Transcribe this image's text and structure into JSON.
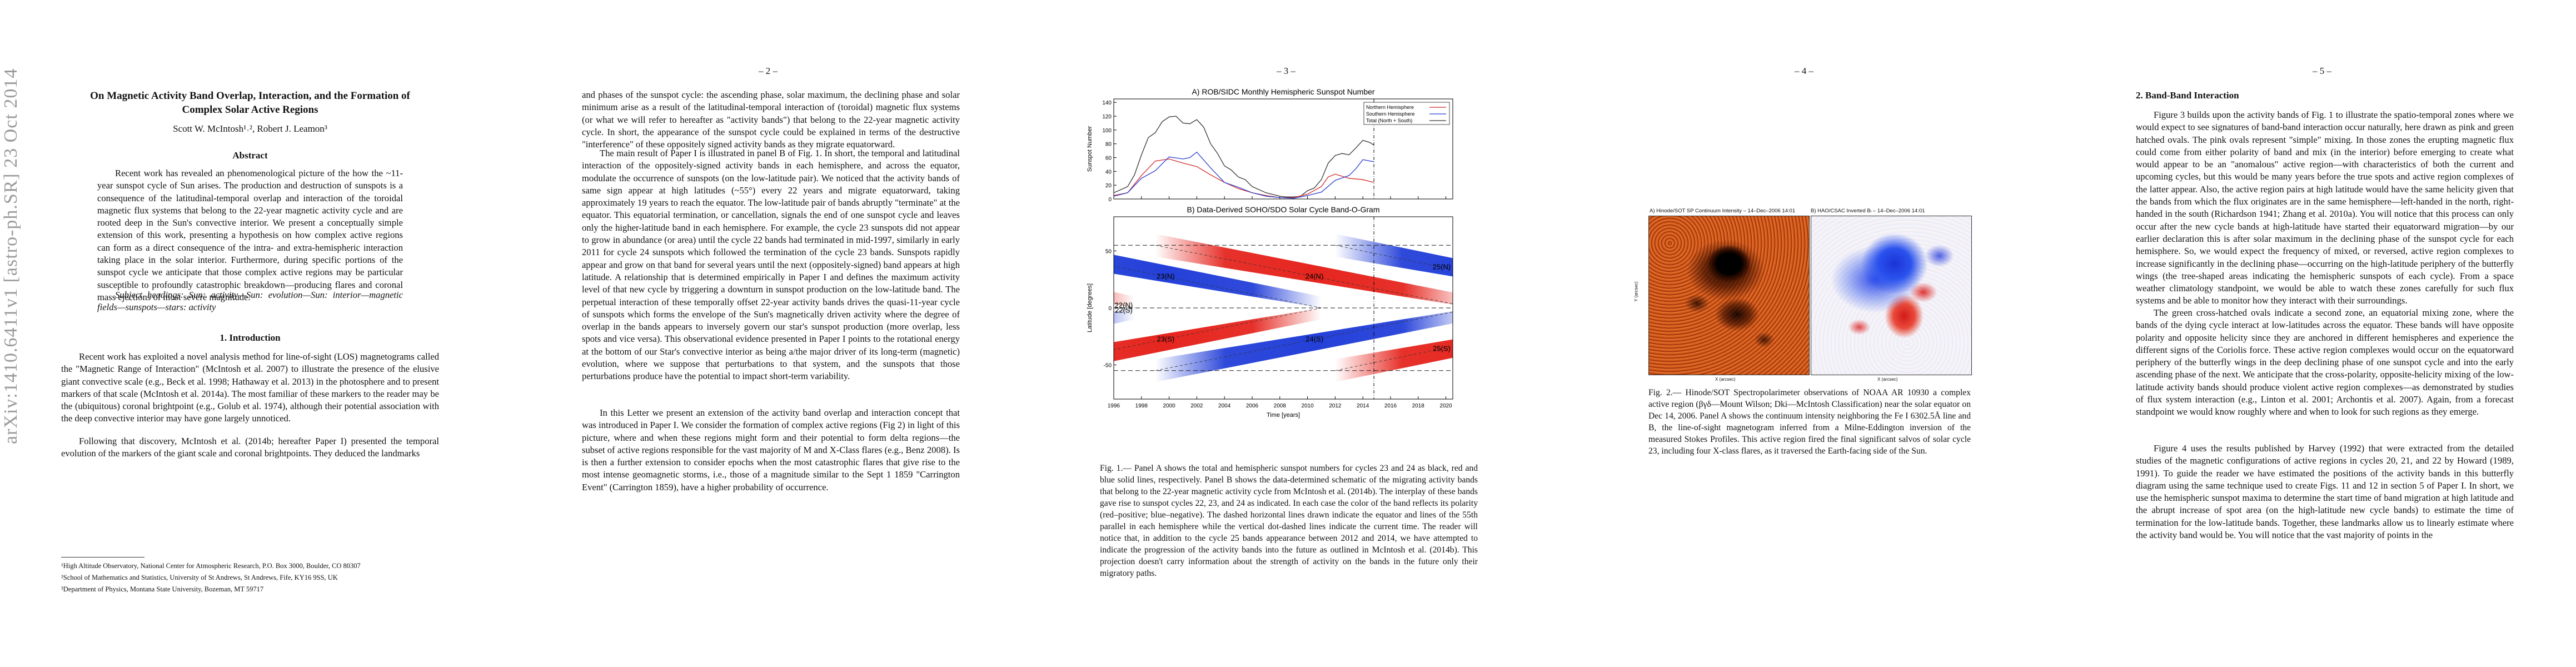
{
  "arxiv_id": "arXiv:1410.6411v1  [astro-ph.SR]  23 Oct 2014",
  "page1": {
    "title": "On Magnetic Activity Band Overlap, Interaction, and the Formation of Complex Solar Active Regions",
    "authors": "Scott W. McIntosh¹˒², Robert J. Leamon³",
    "abstract_heading": "Abstract",
    "abstract": "Recent work has revealed an phenomenological picture of the how the ~11-year sunspot cycle of Sun arises. The production and destruction of sunspots is a consequence of the latitudinal-temporal overlap and interaction of the toroidal magnetic flux systems that belong to the 22-year magnetic activity cycle and are rooted deep in the Sun's convective interior. We present a conceptually simple extension of this work, presenting a hypothesis on how complex active regions can form as a direct consequence of the intra- and extra-hemispheric interaction taking place in the solar interior. Furthermore, during specific portions of the sunspot cycle we anticipate that those complex active regions may be particular susceptible to profoundly catastrophic breakdown—producing flares and coronal mass ejections of most severe magnitude.",
    "subject_headings": "Subject headings: Sun: activity—Sun: evolution—Sun: interior—magnetic fields—sunspots—stars: activity",
    "intro_heading": "1.   Introduction",
    "intro_p1": "Recent work has exploited a novel analysis method for line-of-sight (LOS) magnetograms called the \"Magnetic Range of Interaction\" (McIntosh et al. 2007) to illustrate the presence of the elusive giant convective scale (e.g., Beck et al. 1998; Hathaway et al. 2013) in the photosphere and to present markers of that scale (McIntosh et al. 2014a). The most familiar of these markers to the reader may be the (ubiquitous) coronal brightpoint (e.g., Golub et al. 1974), although their potential association with the deep convective interior may have gone largely unnoticed.",
    "intro_p2": "Following that discovery, McIntosh et al. (2014b; hereafter Paper I) presented the temporal evolution of the markers of the giant scale and coronal brightpoints. They deduced the landmarks",
    "footnotes": [
      "¹High Altitude Observatory, National Center for Atmospheric Research, P.O. Box 3000, Boulder, CO 80307",
      "²School of Mathematics and Statistics, University of St Andrews, St Andrews, Fife, KY16 9SS, UK",
      "³Department of Physics, Montana State University, Bozeman, MT 59717"
    ]
  },
  "page2": {
    "number": "– 2 –",
    "p1": "and phases of the sunspot cycle: the ascending phase, solar maximum, the declining phase and solar minimum arise as a result of the latitudinal-temporal interaction of (toroidal) magnetic flux systems (or what we will refer to hereafter as \"activity bands\") that belong to the 22-year magnetic activity cycle. In short, the appearance of the sunspot cycle could be explained in terms of the destructive \"interference\" of these oppositely signed activity bands as they migrate equatorward.",
    "p2": "The main result of Paper I is illustrated in panel B of Fig. 1. In short, the temporal and latitudinal interaction of the oppositely-signed activity bands in each hemisphere, and across the equator, modulate the occurrence of sunspots (on the low-latitude pair). We noticed that the activity bands of same sign appear at high latitudes (~55°) every 22 years and migrate equatorward, taking approximately 19 years to reach the equator. The low-latitude pair of bands abruptly \"terminate\" at the equator. This equatorial termination, or cancellation, signals the end of one sunspot cycle and leaves only the higher-latitude band in each hemisphere. For example, the cycle 23 sunspots did not appear to grow in abundance (or area) until the cycle 22 bands had terminated in mid-1997, similarly in early 2011 for cycle 24 sunspots which followed the termination of the cycle 23 bands. Sunspots rapidly appear and grow on that band for several years until the next (oppositely-signed) band appears at high latitude. A relationship that is determined empirically in Paper I and defines the maximum activity level of that new cycle by triggering a downturn in sunspot production on the low-latitude band. The perpetual interaction of these temporally offset 22-year activity bands drives the quasi-11-year cycle of sunspots which forms the envelope of the Sun's magnetically driven activity where the degree of overlap in the bands appears to inversely govern our star's sunspot production (more overlap, less spots and vice versa). This observational evidence presented in Paper I points to the rotational energy at the bottom of our Star's convective interior as being a/the major driver of its long-term (magnetic) evolution, where we suppose that perturbations to that system, and the sunspots that those perturbations produce have the potential to impact short-term variability.",
    "p3": "In this Letter we present an extension of the activity band overlap and interaction concept that was introduced in Paper I. We consider the formation of complex active regions (Fig 2) in light of this picture, where and when these regions might form and their potential to form delta regions—the subset of active regions responsible for the vast majority of M and X-Class flares (e.g., Benz 2008). Is is then a further extension to consider epochs when the most catastrophic flares that give rise to the most intense geomagnetic storms, i.e., those of a magnitude similar to the Sept 1 1859 \"Carrington Event\" (Carrington 1859), have a higher probability of occurrence."
  },
  "page3": {
    "number": "– 3 –",
    "panel_a_title": "A) ROB/SIDC Monthly Hemispheric Sunspot Number",
    "panel_b_title": "B) Data-Derived SOHO/SDO Solar Cycle Band-O-Gram",
    "caption": "Fig. 1.— Panel A shows the total and hemispheric sunspot numbers for cycles 23 and 24 as black, red and blue solid lines, respectively. Panel B shows the data-determined schematic of the migrating activity bands that belong to the 22-year magnetic activity cycle from McIntosh et al. (2014b). The interplay of these bands gave rise to sunspot cycles 22, 23, and 24 as indicated. In each case the color of the band reflects its polarity (red–positive; blue–negative). The dashed horizontal lines drawn indicate the equator and lines of the 55th parallel in each hemisphere while the vertical dot-dashed lines indicate the current time. The reader will notice that, in addition to the cycle 25 bands appearance between 2012 and 2014, we have attempted to indicate the progression of the activity bands into the future as outlined in McIntosh et al. (2014b). This projection doesn't carry information about the strength of activity on the bands in the future only their migratory paths."
  },
  "page4": {
    "number": "– 4 –",
    "panel_a_title": "A) Hinode/SOT SP Continuum Intensity – 14–Dec–2006 14:01",
    "panel_b_title": "B) HAO/CSAC Inverted Bₗ – 14–Dec–2006 14:01",
    "panel_a_ylabel": "Y (arcsec)",
    "panel_a_xlabel": "X (arcsec)",
    "panel_b_xlabel": "X (arcsec)",
    "caption": "Fig. 2.— Hinode/SOT Spectropolarimeter observations of NOAA AR 10930 a complex active region (βγδ—Mount Wilson; Dki—McIntosh Classification) near the solar equator on Dec 14, 2006. Panel A shows the continuum intensity neighboring the Fe I 6302.5Å line and B, the line-of-sight magnetogram inferred from a Milne-Eddington inversion of the measured Stokes Profiles. This active region fired the final significant salvos of solar cycle 23, including four X-class flares, as it traversed the Earth-facing side of the Sun."
  },
  "page5": {
    "number": "– 5 –",
    "heading": "2.   Band-Band Interaction",
    "p1": "Figure 3 builds upon the activity bands of Fig. 1 to illustrate the spatio-temporal zones where we would expect to see signatures of band-band interaction occur naturally, here drawn as pink and green hatched ovals. The pink ovals represent \"simple\" mixing. In those zones the erupting magnetic flux could come from either polarity of band and mix (in the interior) before emerging to create what would appear to be an \"anomalous\" active region—with characteristics of both the current and upcoming cycles, but this would be many years before the true spots and active region complexes of the latter appear. Also, the active region pairs at high latitude would have the same helicity given that the bands from which the flux originates are in the same hemisphere—left-handed in the north, right-handed in the south (Richardson 1941; Zhang et al. 2010a). You will notice that this process can only occur after the new cycle bands at high-latitude have started their equatorward migration—by our earlier declaration this is after solar maximum in the declining phase of the sunspot cycle for each hemisphere. So, we would expect the frequency of mixed, or reversed, active region complexes to increase significantly in the declining phase—occurring on the high-latitude periphery of the butterfly wings (the tree-shaped areas indicating the hemispheric sunspots of each cycle). From a space weather climatology standpoint, we would be able to watch these zones carefully for such flux systems and be able to monitor how they interact with their surroundings.",
    "p2": "The green cross-hatched ovals indicate a second zone, an equatorial mixing zone, where the bands of the dying cycle interact at low-latitudes across the equator. These bands will have opposite polarity and opposite helicity since they are anchored in different hemispheres and experience the different signs of the Coriolis force. These active region complexes would occur on the equatorward periphery of the butterfly wings in the deep declining phase of one sunspot cycle and into the early ascending phase of the next. We anticipate that the cross-polarity, opposite-helicity mixing of the low-latitude activity bands should produce violent active region complexes—as demonstrated by studies of flux system interaction (e.g., Linton et al. 2001; Archontis et al. 2007). Again, from a forecast standpoint we would know roughly where and when to look for such regions as they emerge.",
    "p3": "Figure 4 uses the results published by Harvey (1992) that were extracted from the detailed studies of the magnetic configurations of active regions in cycles 20, 21, and 22 by Howard (1989, 1991). To guide the reader we have estimated the positions of the activity bands in this butterfly diagram using the same technique used to create Figs. 11 and 12 in section 5 of Paper I. In short, we use the hemispheric sunspot maxima to determine the start time of band migration at high latitude and the abrupt increase of spot area (on the high-latitude new cycle bands) to estimate the time of termination for the low-latitude bands. Together, these landmarks allow us to linearly estimate where the activity band would be. You will notice that the vast majority of points in the"
  },
  "chart_data": [
    {
      "type": "line",
      "title": "A) ROB/SIDC Monthly Hemispheric Sunspot Number",
      "xlabel": "",
      "ylabel": "Sunspot Number",
      "xlim": [
        1996,
        2020.5
      ],
      "ylim": [
        0,
        145
      ],
      "yticks": [
        0,
        20,
        40,
        60,
        80,
        100,
        120,
        140
      ],
      "current_time": 2014.8,
      "legend": [
        "Northern Hemisphere",
        "Southern Hemisphere",
        "Total (North + South)"
      ],
      "legend_position": "top-right",
      "series": [
        {
          "name": "Total (North + South)",
          "color": "#333333",
          "x": [
            1996.0,
            1997.0,
            1997.5,
            1998.0,
            1998.5,
            1999.0,
            1999.5,
            2000.0,
            2000.5,
            2001.0,
            2001.5,
            2002.0,
            2002.5,
            2003.0,
            2003.5,
            2004.0,
            2004.5,
            2005.0,
            2005.5,
            2006.0,
            2007.0,
            2008.0,
            2008.5,
            2009.0,
            2009.5,
            2010.0,
            2010.5,
            2011.0,
            2011.5,
            2012.0,
            2012.5,
            2013.0,
            2013.5,
            2014.0,
            2014.5,
            2014.8
          ],
          "values": [
            9,
            18,
            35,
            64,
            89,
            96,
            112,
            119,
            120,
            110,
            109,
            115,
            104,
            80,
            66,
            48,
            42,
            32,
            28,
            18,
            9,
            4,
            3,
            3,
            4,
            12,
            16,
            28,
            52,
            63,
            66,
            64,
            74,
            85,
            82,
            78
          ]
        },
        {
          "name": "Northern Hemisphere",
          "color": "#d12a2a",
          "x": [
            1996.0,
            1997.0,
            1998.0,
            1999.0,
            2000.0,
            2000.5,
            2001.0,
            2002.0,
            2003.0,
            2004.0,
            2005.0,
            2006.0,
            2007.0,
            2008.0,
            2009.0,
            2010.0,
            2011.0,
            2011.5,
            2012.0,
            2013.0,
            2014.0,
            2014.8
          ],
          "values": [
            5,
            9,
            34,
            55,
            58,
            55,
            52,
            47,
            35,
            24,
            15,
            9,
            5,
            2,
            2,
            7,
            18,
            32,
            36,
            30,
            28,
            24
          ]
        },
        {
          "name": "Southern Hemisphere",
          "color": "#2a3fd1",
          "x": [
            1996.0,
            1997.0,
            1998.0,
            1999.0,
            2000.0,
            2001.0,
            2001.5,
            2002.0,
            2003.0,
            2004.0,
            2005.0,
            2006.0,
            2007.0,
            2008.0,
            2009.0,
            2010.0,
            2011.0,
            2012.0,
            2013.0,
            2013.5,
            2014.0,
            2014.8
          ],
          "values": [
            4,
            9,
            30,
            41,
            61,
            58,
            60,
            68,
            45,
            24,
            17,
            9,
            4,
            2,
            1,
            5,
            10,
            27,
            34,
            44,
            57,
            54
          ]
        }
      ]
    },
    {
      "type": "heatmap",
      "title": "B) Data-Derived SOHO/SDO Solar Cycle Band-O-Gram",
      "xlabel": "Time [years]",
      "ylabel": "Latitude [degrees]",
      "xlim": [
        1996,
        2020.5
      ],
      "ylim": [
        -80,
        80
      ],
      "xticks": [
        1996,
        1998,
        2000,
        2002,
        2004,
        2006,
        2008,
        2010,
        2012,
        2014,
        2016,
        2018,
        2020
      ],
      "yticks": [
        -50,
        0,
        50
      ],
      "current_time": 2014.8,
      "bands": [
        {
          "label": "22(N)",
          "polarity": "positive",
          "t0": 1977.0,
          "t1": 1997.5,
          "lat0": 55
        },
        {
          "label": "22(S)",
          "polarity": "negative",
          "t0": 1977.0,
          "t1": 1997.5,
          "lat0": -55
        },
        {
          "label": "23(N)",
          "polarity": "negative",
          "t0": 1988.5,
          "t1": 2011.0,
          "lat0": 55
        },
        {
          "label": "23(S)",
          "polarity": "positive",
          "t0": 1988.5,
          "t1": 2011.0,
          "lat0": -55
        },
        {
          "label": "24(N)",
          "polarity": "positive",
          "t0": 1999.0,
          "t1": 2022.0,
          "lat0": 55
        },
        {
          "label": "24(S)",
          "polarity": "negative",
          "t0": 1999.0,
          "t1": 2022.0,
          "lat0": -55
        },
        {
          "label": "25(N)",
          "polarity": "negative",
          "t0": 2012.0,
          "t1": 2034.0,
          "lat0": 55
        },
        {
          "label": "25(S)",
          "polarity": "positive",
          "t0": 2012.0,
          "t1": 2034.0,
          "lat0": -55
        }
      ]
    }
  ]
}
